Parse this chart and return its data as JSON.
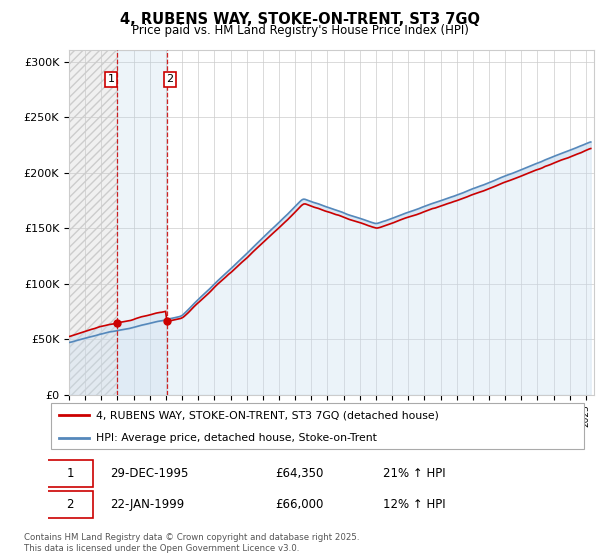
{
  "title": "4, RUBENS WAY, STOKE-ON-TRENT, ST3 7GQ",
  "subtitle": "Price paid vs. HM Land Registry's House Price Index (HPI)",
  "ylim": [
    0,
    310000
  ],
  "yticks": [
    0,
    50000,
    100000,
    150000,
    200000,
    250000,
    300000
  ],
  "ytick_labels": [
    "£0",
    "£50K",
    "£100K",
    "£150K",
    "£200K",
    "£250K",
    "£300K"
  ],
  "background_color": "#ffffff",
  "grid_color": "#cccccc",
  "legend_label_red": "4, RUBENS WAY, STOKE-ON-TRENT, ST3 7GQ (detached house)",
  "legend_label_blue": "HPI: Average price, detached house, Stoke-on-Trent",
  "annotation1_date": "29-DEC-1995",
  "annotation1_price": "£64,350",
  "annotation1_hpi": "21% ↑ HPI",
  "annotation2_date": "22-JAN-1999",
  "annotation2_price": "£66,000",
  "annotation2_hpi": "12% ↑ HPI",
  "footer": "Contains HM Land Registry data © Crown copyright and database right 2025.\nThis data is licensed under the Open Government Licence v3.0.",
  "purchase1_x": 1995.99,
  "purchase1_y": 64350,
  "purchase2_x": 1999.06,
  "purchase2_y": 66000,
  "red_line_color": "#cc0000",
  "blue_line_color": "#5588bb",
  "blue_fill_color": "#c8ddf0",
  "vline1_x": 1995.99,
  "vline2_x": 1999.06,
  "xmin": 1993.0,
  "xmax": 2025.5
}
